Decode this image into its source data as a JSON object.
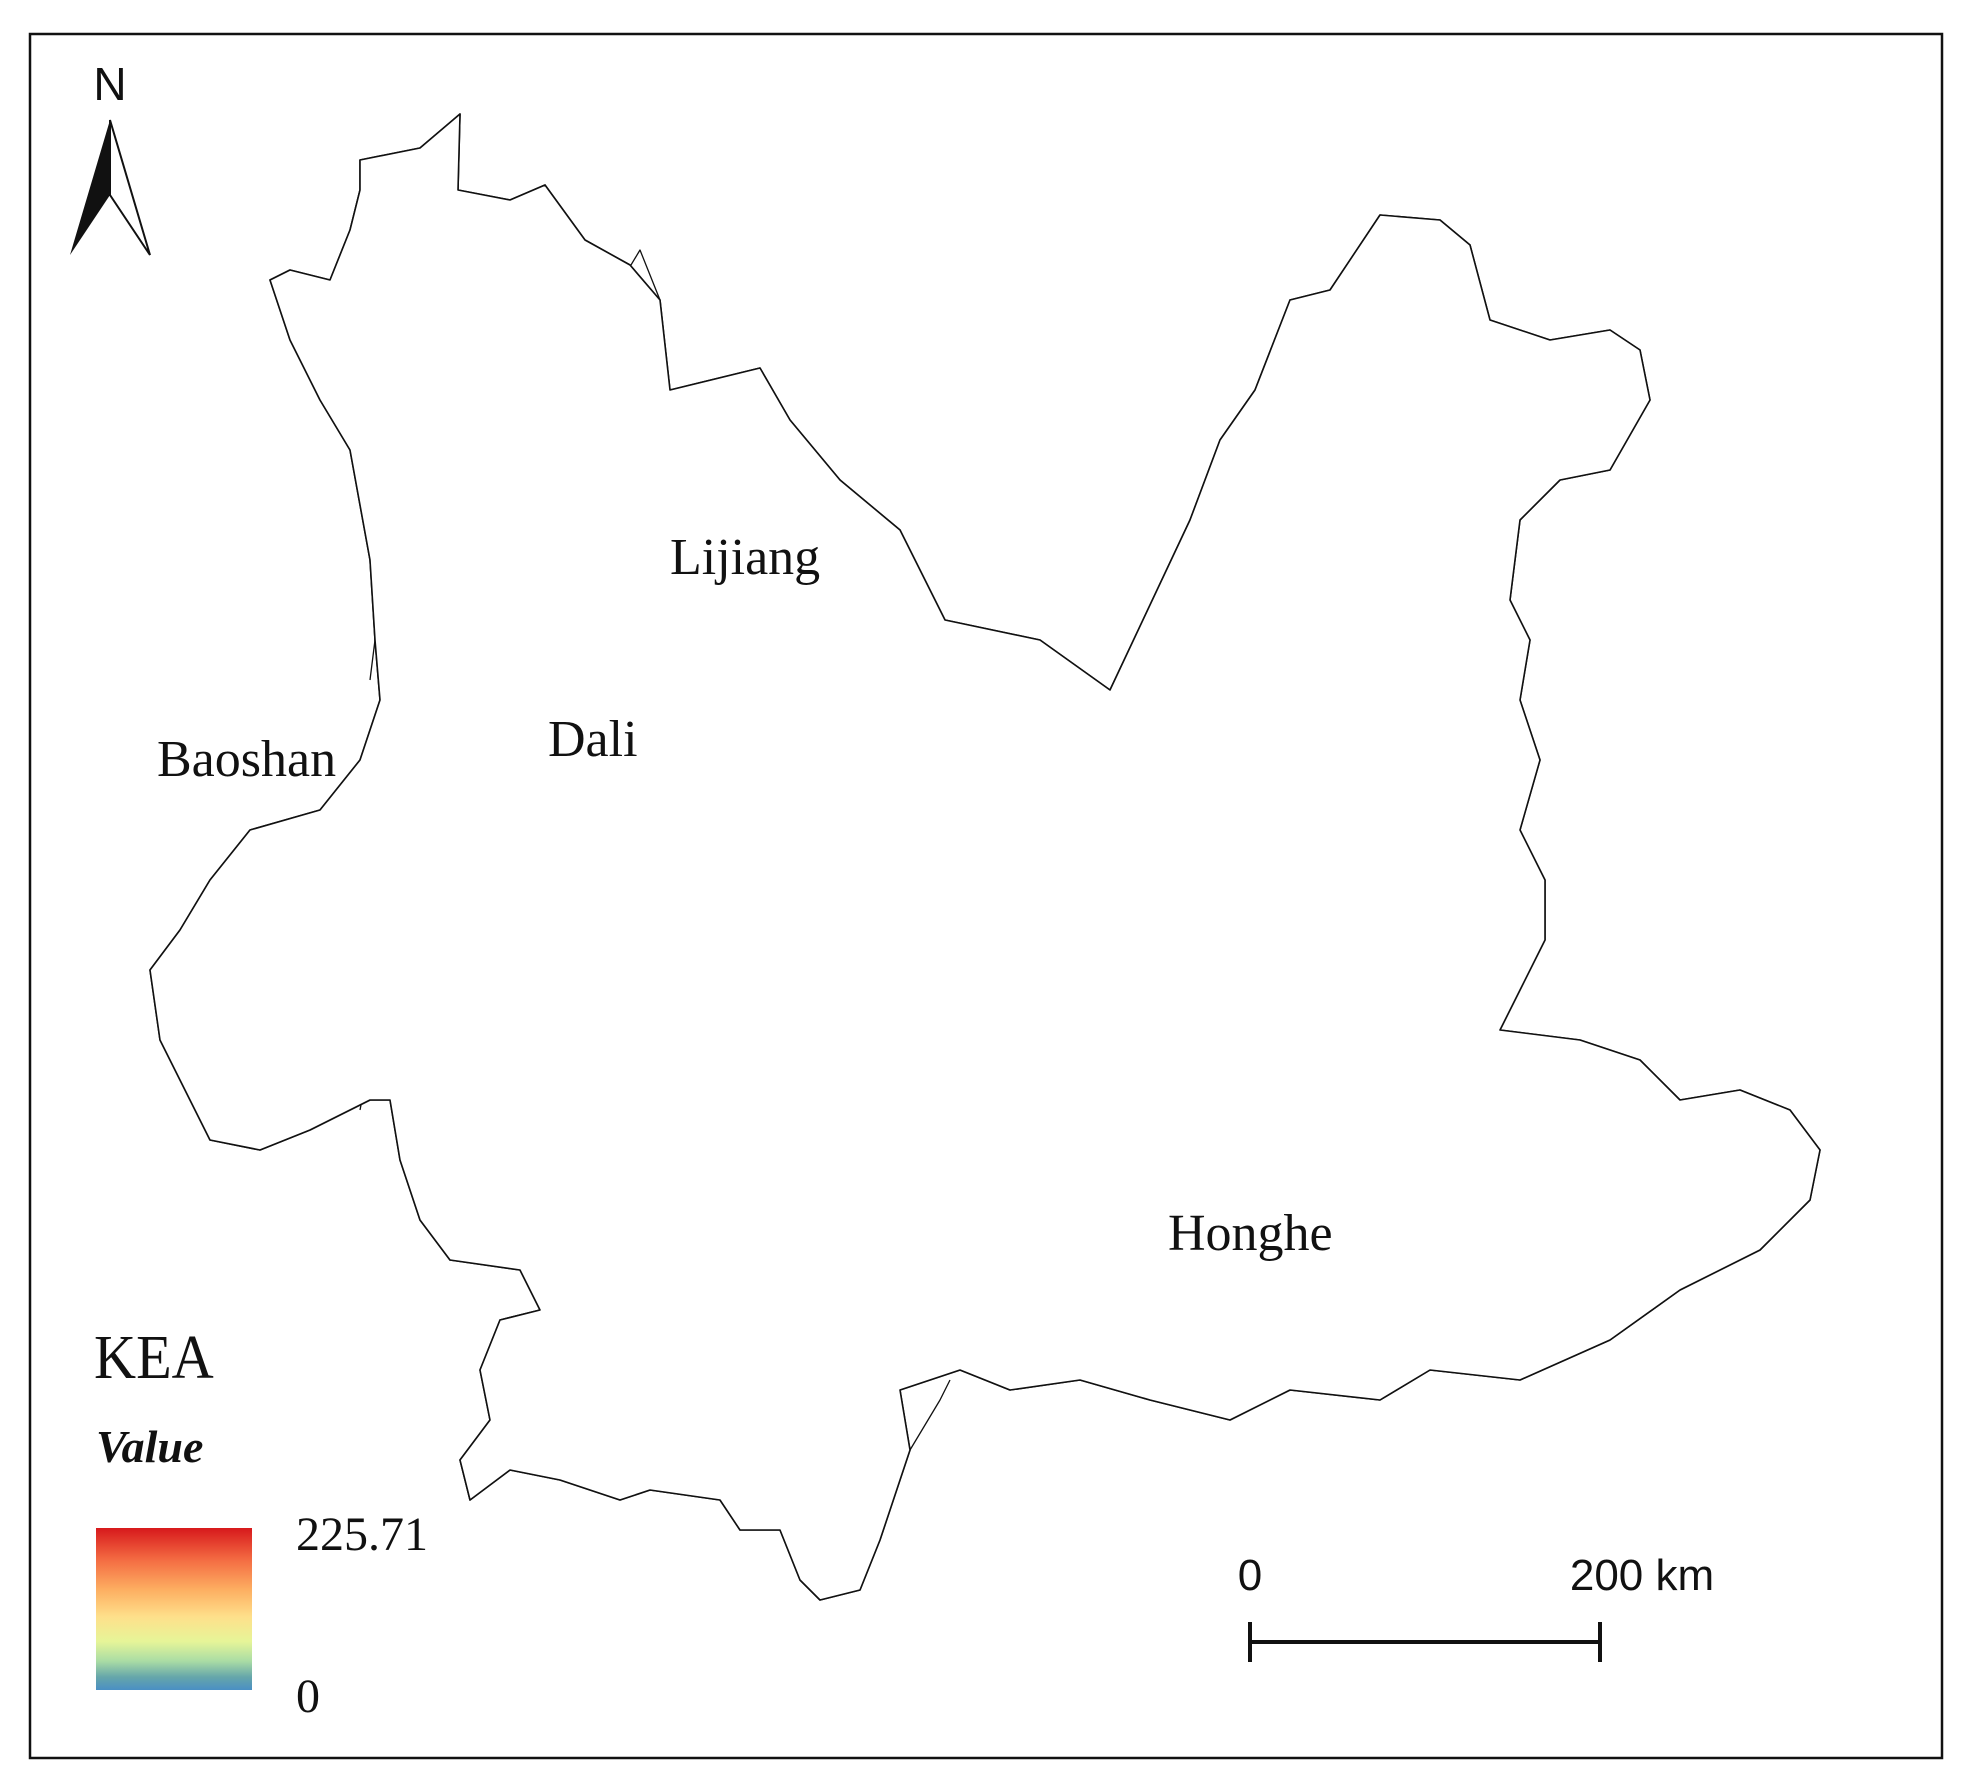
{
  "map": {
    "north_label": "N",
    "places": {
      "baoshan": "Baoshan",
      "dali": "Dali",
      "lijiang": "Lijiang",
      "honghe": "Honghe"
    },
    "legend": {
      "title": "KEA",
      "subtitle": "Value",
      "max_label": "225.71",
      "min_label": "0",
      "colors": [
        "#d7191c",
        "#f46d43",
        "#fdae61",
        "#fee08b",
        "#e6f598",
        "#abdda4",
        "#66a6aa",
        "#4a8fc4"
      ]
    },
    "scale_bar": {
      "start_label": "0",
      "end_label": "200 km"
    },
    "density_colors": {
      "level1": "#6aa8aa",
      "level2": "#a3bf8f",
      "level3": "#d6e17a",
      "level4": "#f4e06c",
      "level5": "#f7c85e",
      "level6": "#f59a3c",
      "level7": "#ef6a2d",
      "level8": "#de2a1f"
    }
  }
}
